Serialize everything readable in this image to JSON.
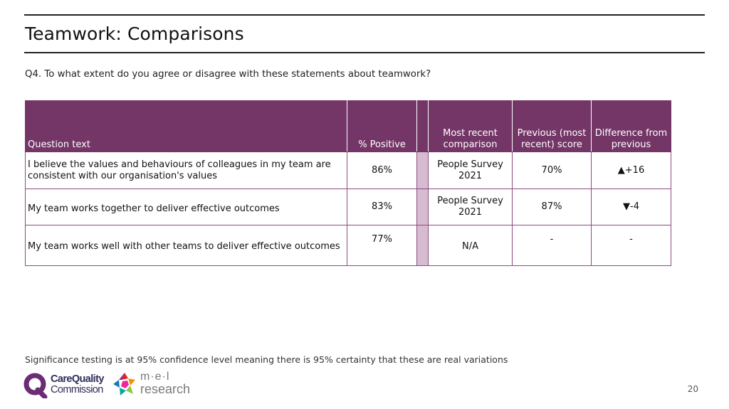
{
  "page": {
    "title": "Teamwork: Comparisons",
    "question": "Q4. To what extent do you agree or disagree with these statements about teamwork?",
    "footnote": "Significance testing is at 95% confidence level meaning there is 95% certainty that these are real variations",
    "page_number": "20"
  },
  "table": {
    "headers": {
      "question_text": "Question text",
      "positive": "% Positive",
      "comparison": "Most recent comparison",
      "previous": "Previous (most recent) score",
      "difference": "Difference from previous"
    },
    "rows": [
      {
        "question": "I believe the values and behaviours of colleagues in my team are consistent with our organisation's values",
        "positive": "86%",
        "comparison": "People Survey 2021",
        "previous": "70%",
        "difference": "▲+16"
      },
      {
        "question": "My team works together to deliver effective outcomes",
        "positive": "83%",
        "comparison": "People Survey 2021",
        "previous": "87%",
        "difference": "▼-4"
      },
      {
        "question": "My team works well with other teams to deliver effective outcomes",
        "positive": "77%",
        "comparison": "N/A",
        "previous": "-",
        "difference": "-"
      }
    ]
  },
  "logos": {
    "cqc_line1": "CareQuality",
    "cqc_line2": "Commission",
    "mel_line1": "m·e·l",
    "mel_line2": "research"
  },
  "colors": {
    "header_bg": "#743667",
    "spacer": "#d7bcd1",
    "cqc_purple": "#6b2c74"
  }
}
